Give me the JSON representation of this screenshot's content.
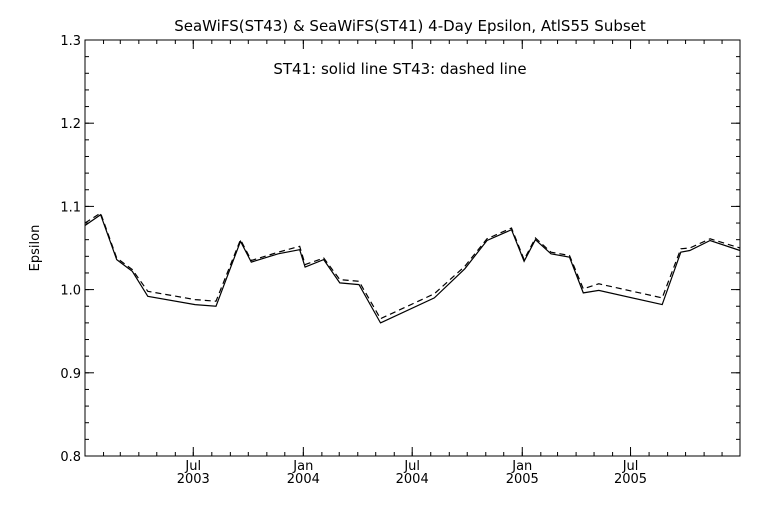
{
  "chart_data": {
    "type": "line",
    "title": "SeaWiFS(ST43) & SeaWiFS(ST41) 4-Day Epsilon, AtlS55 Subset",
    "legend_text": "ST41: solid line   ST43: dashed line",
    "xlabel": "",
    "ylabel": "Epsilon",
    "ylim": [
      0.8,
      1.3
    ],
    "yticks": [
      "0.8",
      "0.9",
      "1.0",
      "1.1",
      "1.2",
      "1.3"
    ],
    "xlim": [
      "2003-01-01",
      "2005-12-31"
    ],
    "xticks": [
      {
        "date": "2003-07-01",
        "month": "Jul",
        "year": "2003"
      },
      {
        "date": "2004-01-01",
        "month": "Jan",
        "year": "2004"
      },
      {
        "date": "2004-07-01",
        "month": "Jul",
        "year": "2004"
      },
      {
        "date": "2005-01-01",
        "month": "Jan",
        "year": "2005"
      },
      {
        "date": "2005-07-01",
        "month": "Jul",
        "year": "2005"
      }
    ],
    "grid": false,
    "series": [
      {
        "name": "ST41",
        "style": "solid",
        "color": "#000000",
        "x": [
          "2003-01-01",
          "2003-01-27",
          "2003-02-23",
          "2003-03-21",
          "2003-04-16",
          "2003-07-04",
          "2003-08-08",
          "2003-09-18",
          "2003-10-06",
          "2003-11-20",
          "2003-12-26",
          "2004-01-04",
          "2004-02-04",
          "2004-03-02",
          "2004-04-03",
          "2004-05-09",
          "2004-08-07",
          "2004-09-27",
          "2004-11-03",
          "2004-12-14",
          "2005-01-04",
          "2005-01-23",
          "2005-02-18",
          "2005-03-21",
          "2005-04-13",
          "2005-05-09",
          "2005-08-23",
          "2005-09-23",
          "2005-10-08",
          "2005-11-11",
          "2005-12-31"
        ],
        "y": [
          1.077,
          1.09,
          1.036,
          1.022,
          0.992,
          0.982,
          0.98,
          1.058,
          1.033,
          1.043,
          1.048,
          1.027,
          1.036,
          1.008,
          1.006,
          0.96,
          0.99,
          1.025,
          1.059,
          1.072,
          1.034,
          1.06,
          1.043,
          1.039,
          0.996,
          0.999,
          0.982,
          1.045,
          1.047,
          1.059,
          1.047
        ]
      },
      {
        "name": "ST43",
        "style": "dashed",
        "color": "#000000",
        "x": [
          "2003-01-01",
          "2003-01-27",
          "2003-02-23",
          "2003-03-21",
          "2003-04-16",
          "2003-07-04",
          "2003-08-08",
          "2003-09-18",
          "2003-10-06",
          "2003-11-20",
          "2003-12-26",
          "2004-01-04",
          "2004-02-04",
          "2004-03-02",
          "2004-04-03",
          "2004-05-09",
          "2004-08-07",
          "2004-09-27",
          "2004-11-03",
          "2004-12-14",
          "2005-01-04",
          "2005-01-23",
          "2005-02-18",
          "2005-03-21",
          "2005-04-13",
          "2005-05-09",
          "2005-08-23",
          "2005-09-23",
          "2005-10-08",
          "2005-11-11",
          "2005-12-31"
        ],
        "y": [
          1.08,
          1.092,
          1.038,
          1.024,
          0.998,
          0.988,
          0.986,
          1.06,
          1.035,
          1.045,
          1.052,
          1.03,
          1.038,
          1.012,
          1.01,
          0.965,
          0.995,
          1.028,
          1.061,
          1.074,
          1.036,
          1.062,
          1.045,
          1.041,
          1.001,
          1.007,
          0.99,
          1.049,
          1.05,
          1.061,
          1.05
        ]
      }
    ]
  }
}
